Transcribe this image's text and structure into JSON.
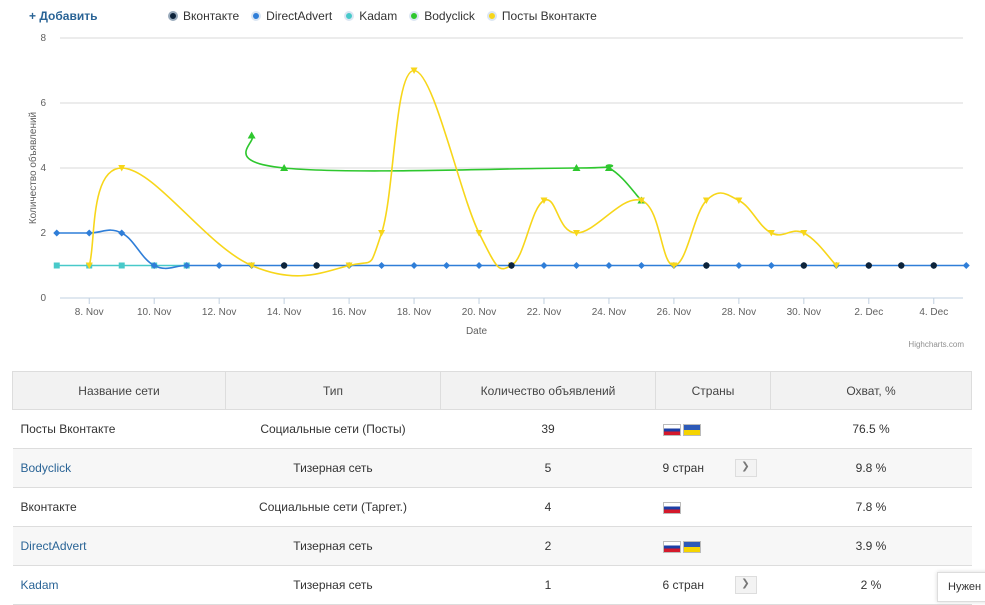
{
  "toolbar": {
    "add_label": "+ Добавить"
  },
  "legend": [
    {
      "label": "Вконтакте",
      "color": "#0d233a"
    },
    {
      "label": "DirectAdvert",
      "color": "#2f7ed8"
    },
    {
      "label": "Kadam",
      "color": "#48c9c9"
    },
    {
      "label": "Bodyclick",
      "color": "#2ec72e"
    },
    {
      "label": "Посты Вконтакте",
      "color": "#f7d61a"
    }
  ],
  "chart_data": {
    "type": "line",
    "xlabel": "Date",
    "ylabel": "Количество объявлений",
    "ylim": [
      0,
      8
    ],
    "y_ticks": [
      "0",
      "2",
      "4",
      "6",
      "8"
    ],
    "x_tick_labels": [
      "8. Nov",
      "10. Nov",
      "12. Nov",
      "14. Nov",
      "16. Nov",
      "18. Nov",
      "20. Nov",
      "22. Nov",
      "24. Nov",
      "26. Nov",
      "28. Nov",
      "30. Nov",
      "2. Dec",
      "4. Dec"
    ],
    "x_tick_days": [
      8,
      10,
      12,
      14,
      16,
      18,
      20,
      22,
      24,
      26,
      28,
      30,
      32,
      34
    ],
    "x_range_days": [
      7.1,
      34.9
    ],
    "grid": true,
    "series": [
      {
        "name": "Вконтакте",
        "color": "#0d233a",
        "marker": "circle",
        "x": [
          14,
          15,
          21,
          27,
          30,
          32,
          33,
          34
        ],
        "y": [
          1,
          1,
          1,
          1,
          1,
          1,
          1,
          1
        ]
      },
      {
        "name": "DirectAdvert",
        "color": "#2f7ed8",
        "marker": "diamond",
        "x": [
          7,
          8,
          9,
          10,
          11,
          12,
          13,
          14,
          15,
          16,
          17,
          18,
          19,
          20,
          21,
          22,
          23,
          24,
          25,
          26,
          27,
          28,
          29,
          30,
          31,
          32,
          33,
          34,
          35
        ],
        "y": [
          2,
          2,
          2,
          1,
          1,
          1,
          1,
          1,
          1,
          1,
          1,
          1,
          1,
          1,
          1,
          1,
          1,
          1,
          1,
          1,
          1,
          1,
          1,
          1,
          1,
          1,
          1,
          1,
          1
        ]
      },
      {
        "name": "Kadam",
        "color": "#48c9c9",
        "marker": "square",
        "x": [
          7,
          8,
          9,
          10,
          11
        ],
        "y": [
          1,
          1,
          1,
          1,
          1
        ]
      },
      {
        "name": "Bodyclick",
        "color": "#2ec72e",
        "marker": "triangle",
        "x": [
          13,
          14,
          23,
          24,
          25
        ],
        "y": [
          5,
          4,
          4,
          4,
          3
        ]
      },
      {
        "name": "Посты Вконтакте",
        "color": "#f7d61a",
        "marker": "triangle-down",
        "x": [
          8,
          9,
          13,
          16,
          17,
          18,
          20,
          21,
          22,
          23,
          25,
          26,
          27,
          28,
          29,
          30,
          31
        ],
        "y": [
          1,
          4,
          1,
          1,
          2,
          7,
          2,
          1,
          3,
          2,
          3,
          1,
          3,
          3,
          2,
          2,
          1
        ]
      }
    ]
  },
  "credits": "Highcharts.com",
  "table": {
    "headers": [
      "Название сети",
      "Тип",
      "Количество объявлений",
      "Страны",
      "Охват, %"
    ],
    "rows": [
      {
        "name": "Посты Вконтакте",
        "type": "Социальные сети (Посты)",
        "count": "39",
        "flags": [
          "ru",
          "ua"
        ],
        "countries_text": "",
        "coverage": "76.5 %"
      },
      {
        "name": "Bodyclick",
        "type": "Тизерная сеть",
        "count": "5",
        "flags": [],
        "countries_text": "9 стран",
        "coverage": "9.8 %"
      },
      {
        "name": "Вконтакте",
        "type": "Социальные сети (Таргет.)",
        "count": "4",
        "flags": [
          "ru"
        ],
        "countries_text": "",
        "coverage": "7.8 %"
      },
      {
        "name": "DirectAdvert",
        "type": "Тизерная сеть",
        "count": "2",
        "flags": [
          "ru",
          "ua"
        ],
        "countries_text": "",
        "coverage": "3.9 %"
      },
      {
        "name": "Kadam",
        "type": "Тизерная сеть",
        "count": "1",
        "flags": [],
        "countries_text": "6 стран",
        "coverage": "2 %"
      }
    ]
  },
  "help_tab": "Нужен"
}
